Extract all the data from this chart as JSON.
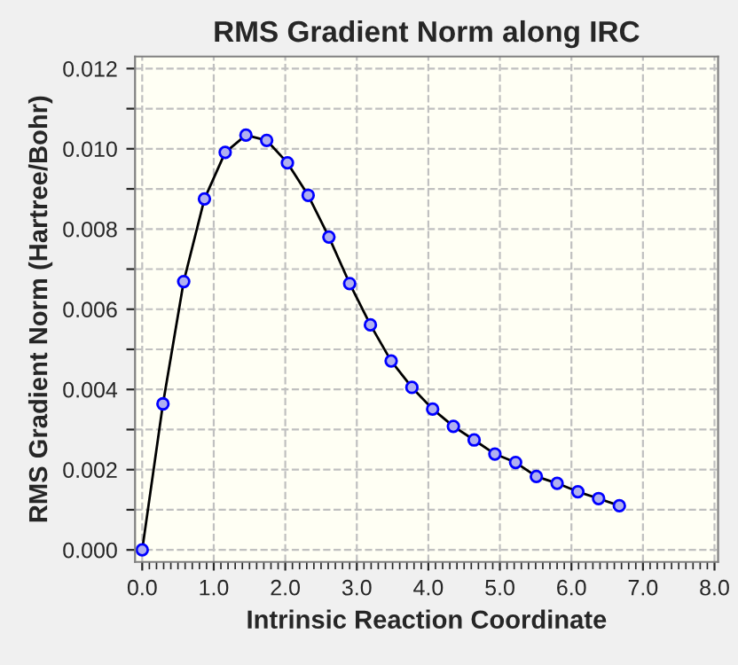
{
  "chart_data": {
    "type": "line",
    "title": "RMS Gradient Norm along IRC",
    "xlabel": "Intrinsic Reaction Coordinate",
    "ylabel": "RMS Gradient Norm (Hartree/Bohr)",
    "x": [
      0,
      0.29,
      0.58,
      0.87,
      1.16,
      1.45,
      1.74,
      2.03,
      2.32,
      2.61,
      2.9,
      3.19,
      3.48,
      3.77,
      4.06,
      4.35,
      4.64,
      4.93,
      5.22,
      5.51,
      5.8,
      6.09,
      6.38,
      6.67
    ],
    "series": [
      {
        "color": "#0000ff",
        "values": [
          0,
          0.00364,
          0.00669,
          0.00875,
          0.00991,
          0.01034,
          0.01021,
          0.00965,
          0.00884,
          0.0078,
          0.00664,
          0.00561,
          0.00471,
          0.00405,
          0.00351,
          0.00308,
          0.00274,
          0.00239,
          0.00218,
          0.00183,
          0.00166,
          0.00145,
          0.00128,
          0.0011
        ]
      }
    ],
    "xlim": [
      -0.1,
      8.05
    ],
    "xticks": [
      {
        "value": 0,
        "label": "0.0"
      },
      {
        "value": 1,
        "label": "1.0"
      },
      {
        "value": 2,
        "label": "2.0"
      },
      {
        "value": 3,
        "label": "3.0"
      },
      {
        "value": 4,
        "label": "4.0"
      },
      {
        "value": 5,
        "label": "5.0"
      },
      {
        "value": 6,
        "label": "6.0"
      },
      {
        "value": 7,
        "label": "7.0"
      },
      {
        "value": 8,
        "label": "8.0"
      }
    ],
    "ylim": [
      -0.0003,
      0.0123
    ],
    "yticks": [
      {
        "value": 0,
        "label": "0.000"
      },
      {
        "value": 0.001,
        "label": null
      },
      {
        "value": 0.002,
        "label": "0.002"
      },
      {
        "value": 0.003,
        "label": null
      },
      {
        "value": 0.004,
        "label": "0.004"
      },
      {
        "value": 0.005,
        "label": null
      },
      {
        "value": 0.006,
        "label": "0.006"
      },
      {
        "value": 0.007,
        "label": null
      },
      {
        "value": 0.008,
        "label": "0.008"
      },
      {
        "value": 0.009,
        "label": null
      },
      {
        "value": 0.01,
        "label": "0.010"
      },
      {
        "value": 0.011,
        "label": null
      },
      {
        "value": 0.012,
        "label": "0.012"
      }
    ],
    "grid": true,
    "marker": "circle",
    "line_style": "solid",
    "legend": false
  }
}
